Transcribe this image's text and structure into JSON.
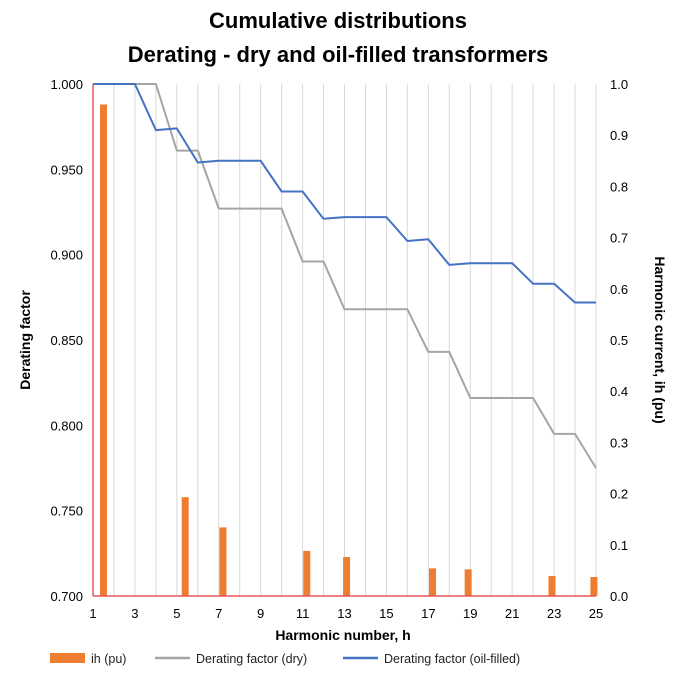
{
  "chart_data": {
    "type": "bar+line",
    "title": [
      "Cumulative distributions",
      "Derating - dry and oil-filled transformers"
    ],
    "xlabel": "Harmonic number, h",
    "ylabel_left": "Derating factor",
    "ylabel_right": "Harmonic current, ih (pu)",
    "x_range": [
      1,
      25
    ],
    "x_ticks": [
      "1",
      "3",
      "5",
      "7",
      "9",
      "11",
      "13",
      "15",
      "17",
      "19",
      "21",
      "23",
      "25"
    ],
    "y_left_range": [
      0.7,
      1.0
    ],
    "y_left_ticks": [
      "1.000",
      "0.950",
      "0.900",
      "0.850",
      "0.800",
      "0.750",
      "0.700"
    ],
    "y_right_range": [
      0.0,
      1.0
    ],
    "y_right_ticks": [
      "1.0",
      "0.9",
      "0.8",
      "0.7",
      "0.6",
      "0.5",
      "0.4",
      "0.3",
      "0.2",
      "0.1",
      "0.0"
    ],
    "grid": "vertical",
    "legend_position": "bottom",
    "bars": {
      "name": "ih (pu)",
      "axis": "right",
      "color": "#ED7D31",
      "x": [
        1.5,
        5.4,
        7.2,
        11.2,
        13.1,
        17.2,
        18.9,
        22.9,
        24.9
      ],
      "values": [
        0.96,
        0.193,
        0.134,
        0.088,
        0.076,
        0.054,
        0.052,
        0.039,
        0.037
      ]
    },
    "series": [
      {
        "name": "Derating factor (dry)",
        "axis": "left",
        "color": "#A5A5A5",
        "x": [
          1,
          4,
          5,
          6,
          7,
          10,
          11,
          12,
          13,
          16,
          17,
          18,
          19,
          22,
          23,
          24,
          25
        ],
        "values": [
          1.0,
          1.0,
          0.961,
          0.961,
          0.927,
          0.927,
          0.896,
          0.896,
          0.868,
          0.868,
          0.843,
          0.843,
          0.816,
          0.816,
          0.795,
          0.795,
          0.775
        ]
      },
      {
        "name": "Derating factor (oil-filled)",
        "axis": "left",
        "color": "#4472C4",
        "x": [
          1,
          3,
          4,
          5,
          6,
          7,
          9,
          10,
          11,
          12,
          13,
          15,
          16,
          17,
          18,
          19,
          21,
          22,
          23,
          24,
          25
        ],
        "values": [
          1.0,
          1.0,
          0.973,
          0.974,
          0.954,
          0.955,
          0.955,
          0.937,
          0.937,
          0.921,
          0.922,
          0.922,
          0.908,
          0.909,
          0.894,
          0.895,
          0.895,
          0.883,
          0.883,
          0.872,
          0.872
        ]
      }
    ],
    "colors": {
      "left_axis": "#E8555A",
      "bottom_axis": "#E8555A",
      "grid": "#D9D9D9"
    }
  }
}
